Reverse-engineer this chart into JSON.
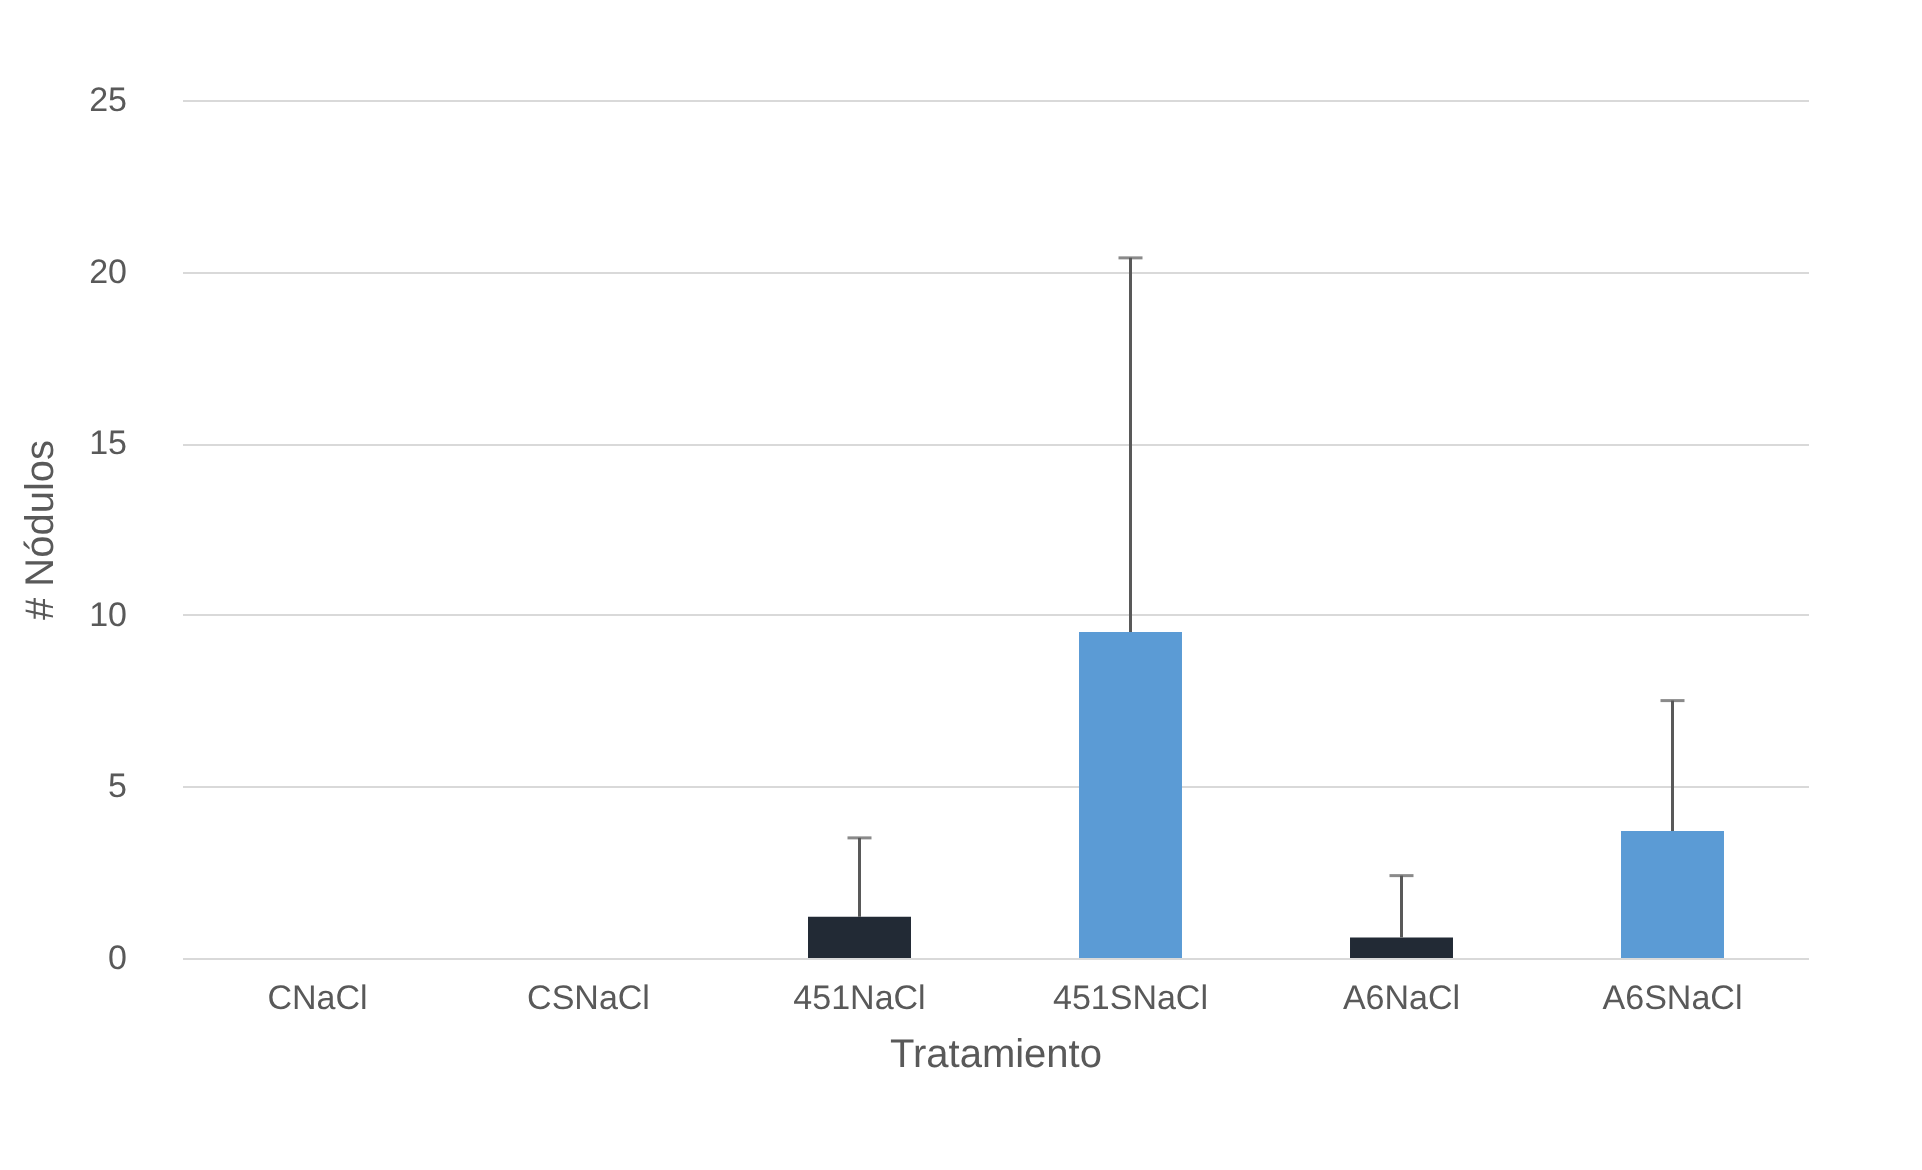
{
  "chart_data": {
    "type": "bar",
    "xlabel": "Tratamiento",
    "ylabel": "# Nódulos",
    "categories": [
      "CNaCl",
      "CSNaCl",
      "451NaCl",
      "451SNaCl",
      "A6NaCl",
      "A6SNaCl"
    ],
    "values": [
      0,
      0,
      1.2,
      9.5,
      0.6,
      3.7
    ],
    "colors": [
      "#222a35",
      "#5b9bd5",
      "#222a35",
      "#5b9bd5",
      "#222a35",
      "#5b9bd5"
    ],
    "errors": [
      null,
      null,
      [
        1.2,
        3.5
      ],
      [
        9.5,
        20.4
      ],
      [
        0.6,
        2.4
      ],
      [
        3.7,
        7.5
      ]
    ],
    "ylim": [
      0,
      25
    ],
    "yticks": [
      0,
      5,
      10,
      15,
      20,
      25
    ],
    "grid": "y"
  }
}
